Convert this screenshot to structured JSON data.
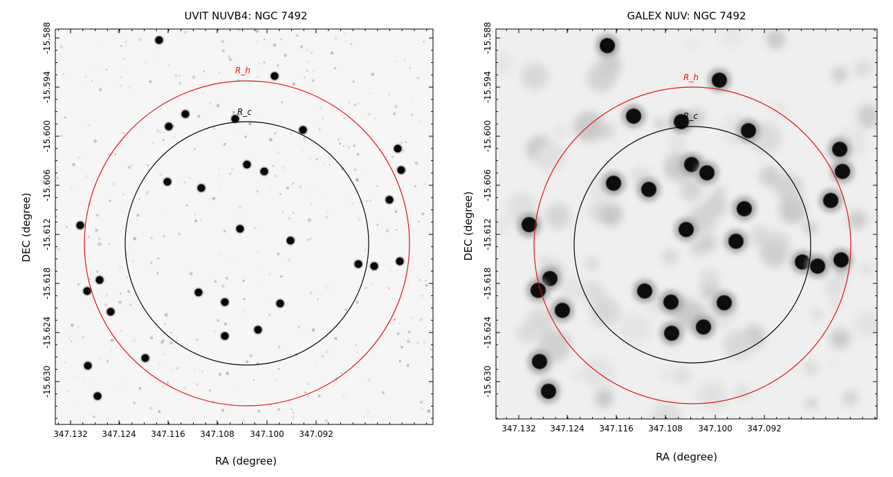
{
  "panels": [
    {
      "id": "uvit",
      "title": "UVIT NUVB4: NGC 7492",
      "xlabel": "RA (degree)",
      "ylabel": "DEC (degree)",
      "x_ticks": [
        "347.132",
        "347.124",
        "347.116",
        "347.108",
        "347.100",
        "347.092"
      ],
      "y_ticks": [
        "-15.588",
        "-15.594",
        "-15.600",
        "-15.606",
        "-15.612",
        "-15.618",
        "-15.624",
        "-15.630"
      ],
      "circles": [
        {
          "label": "R_h",
          "color": "#e01010"
        },
        {
          "label": "R_c",
          "color": "#000000"
        }
      ],
      "stars": [
        [
          230,
          58
        ],
        [
          397,
          110
        ],
        [
          268,
          165
        ],
        [
          340,
          172
        ],
        [
          438,
          188
        ],
        [
          244,
          183
        ],
        [
          357,
          238
        ],
        [
          382,
          248
        ],
        [
          575,
          215
        ],
        [
          580,
          246
        ],
        [
          242,
          263
        ],
        [
          291,
          272
        ],
        [
          563,
          289
        ],
        [
          116,
          326
        ],
        [
          347,
          331
        ],
        [
          420,
          348
        ],
        [
          518,
          382
        ],
        [
          541,
          385
        ],
        [
          578,
          378
        ],
        [
          144,
          405
        ],
        [
          126,
          421
        ],
        [
          160,
          451
        ],
        [
          287,
          423
        ],
        [
          325,
          437
        ],
        [
          405,
          439
        ],
        [
          373,
          477
        ],
        [
          325,
          486
        ],
        [
          210,
          518
        ],
        [
          127,
          529
        ],
        [
          141,
          573
        ]
      ],
      "star_size": 5.5,
      "blur": 0.6
    },
    {
      "id": "galex",
      "title": "GALEX NUV: NGC 7492",
      "xlabel": "RA (degree)",
      "ylabel": "DEC (degree)",
      "x_ticks": [
        "347.132",
        "347.124",
        "347.116",
        "347.108",
        "347.100",
        "347.092"
      ],
      "y_ticks": [
        "-15.588",
        "-15.594",
        "-15.600",
        "-15.606",
        "-15.612",
        "-15.618",
        "-15.624",
        "-15.630"
      ],
      "circles": [
        {
          "label": "R_h",
          "color": "#e01010"
        },
        {
          "label": "R_c",
          "color": "#000000"
        }
      ],
      "stars": [
        [
          878,
          66
        ],
        [
          1040,
          116
        ],
        [
          916,
          168
        ],
        [
          985,
          176
        ],
        [
          1082,
          189
        ],
        [
          1214,
          216
        ],
        [
          1218,
          248
        ],
        [
          1000,
          238
        ],
        [
          1022,
          250
        ],
        [
          887,
          265
        ],
        [
          938,
          274
        ],
        [
          1201,
          290
        ],
        [
          765,
          325
        ],
        [
          992,
          332
        ],
        [
          1064,
          349
        ],
        [
          1076,
          302
        ],
        [
          1160,
          379
        ],
        [
          1182,
          385
        ],
        [
          1216,
          376
        ],
        [
          795,
          403
        ],
        [
          778,
          420
        ],
        [
          813,
          449
        ],
        [
          932,
          421
        ],
        [
          970,
          437
        ],
        [
          1047,
          438
        ],
        [
          1017,
          473
        ],
        [
          971,
          482
        ],
        [
          780,
          523
        ],
        [
          793,
          566
        ]
      ],
      "star_size": 11,
      "blur": 4
    }
  ]
}
